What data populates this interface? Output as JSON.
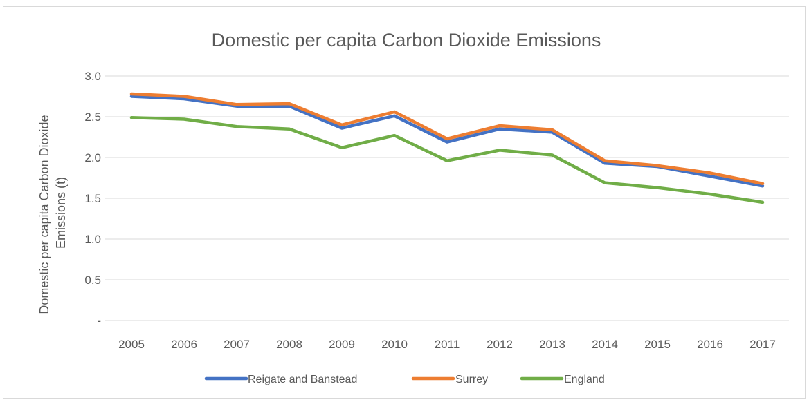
{
  "chart_data": {
    "type": "line",
    "title": "Domestic per capita Carbon Dioxide Emissions",
    "ylabel_lines": [
      "Domestic per capita Carbon Dioxide",
      "Emissions (t)"
    ],
    "xlabel": "",
    "x": [
      "2005",
      "2006",
      "2007",
      "2008",
      "2009",
      "2010",
      "2011",
      "2012",
      "2013",
      "2014",
      "2015",
      "2016",
      "2017"
    ],
    "ylim": [
      0,
      3.0
    ],
    "yticks": [
      0,
      0.5,
      1.0,
      1.5,
      2.0,
      2.5,
      3.0
    ],
    "ytick_labels": [
      "-",
      "0.5",
      "1.0",
      "1.5",
      "2.0",
      "2.5",
      "3.0"
    ],
    "grid": true,
    "legend_position": "bottom",
    "series": [
      {
        "name": "Reigate and Banstead",
        "color": "#4472c4",
        "values": [
          2.75,
          2.72,
          2.63,
          2.63,
          2.36,
          2.51,
          2.19,
          2.35,
          2.31,
          1.93,
          1.89,
          1.77,
          1.65
        ]
      },
      {
        "name": "Surrey",
        "color": "#ed7d31",
        "values": [
          2.78,
          2.75,
          2.65,
          2.66,
          2.4,
          2.56,
          2.23,
          2.39,
          2.34,
          1.96,
          1.9,
          1.81,
          1.68
        ]
      },
      {
        "name": "England",
        "color": "#70ad47",
        "values": [
          2.49,
          2.47,
          2.38,
          2.35,
          2.12,
          2.27,
          1.96,
          2.09,
          2.03,
          1.69,
          1.63,
          1.55,
          1.45
        ]
      }
    ]
  }
}
